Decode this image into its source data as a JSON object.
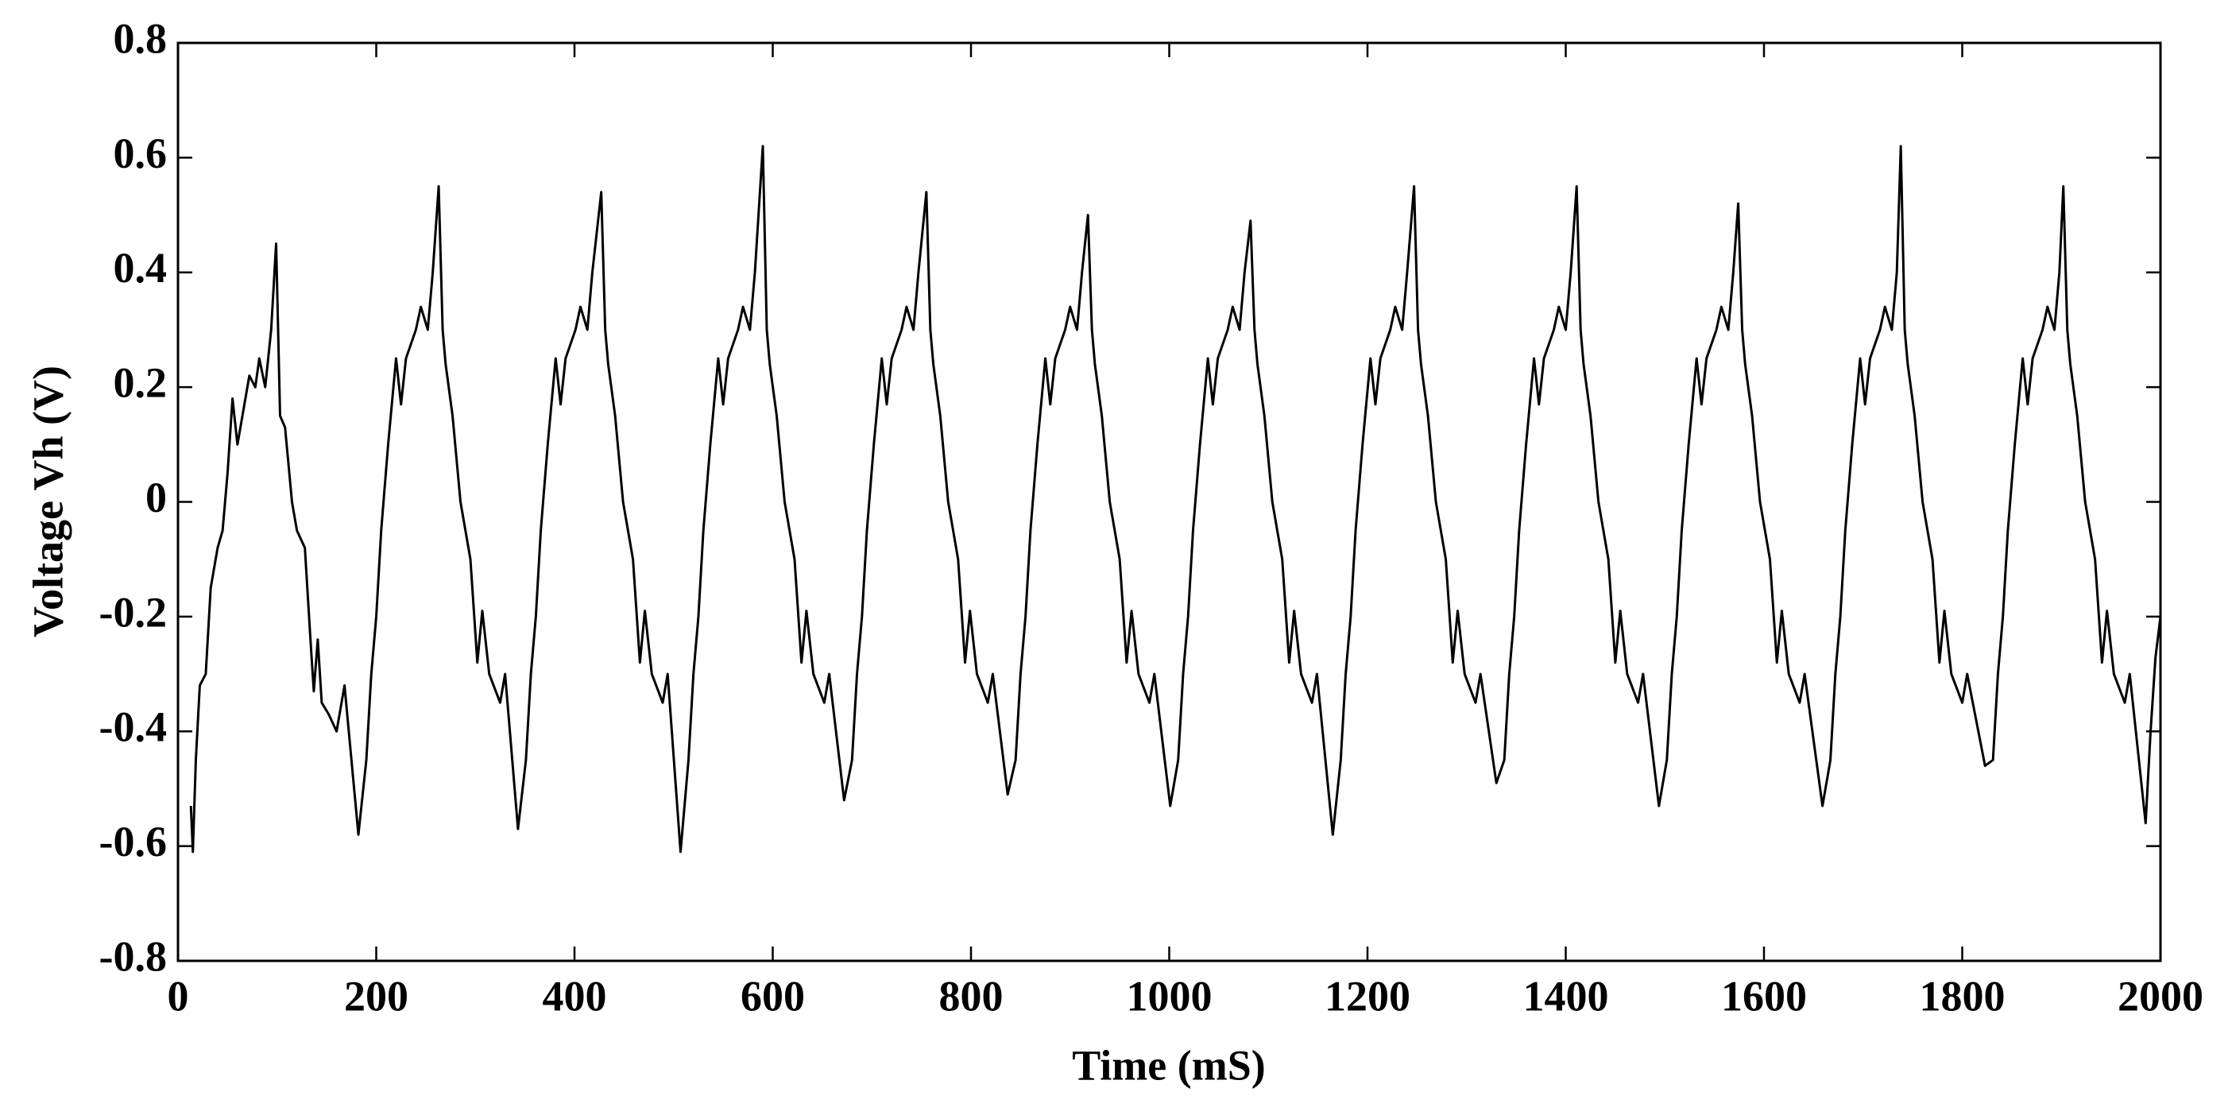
{
  "chart_data": {
    "type": "line",
    "xlabel": "Time (mS)",
    "ylabel": "Voltage Vh (V)",
    "color": "#000000",
    "xlim": [
      0,
      2000
    ],
    "xticks": [
      0,
      200,
      400,
      600,
      800,
      1000,
      1200,
      1400,
      1600,
      1800,
      2000
    ],
    "ylim": [
      -0.8,
      0.8
    ],
    "yticks": [
      -0.8,
      -0.6,
      -0.4,
      -0.2,
      0,
      0.2,
      0.4,
      0.6,
      0.8
    ],
    "grid": false,
    "x": [
      13,
      15,
      18,
      22,
      28,
      33,
      40,
      45,
      50,
      55,
      60,
      65,
      72,
      78,
      82,
      88,
      94,
      99,
      103,
      108,
      115,
      120,
      128,
      134,
      137,
      141,
      145,
      152,
      160,
      168,
      175,
      182,
      190,
      195,
      200,
      205,
      212,
      220,
      225,
      230,
      240,
      245,
      252,
      257,
      263,
      267,
      270,
      277,
      285,
      295,
      302,
      307,
      314,
      325,
      330,
      343,
      351,
      356,
      361,
      366,
      373,
      381,
      386,
      391,
      401,
      406,
      413,
      418,
      427,
      431,
      434,
      441,
      449,
      459,
      466,
      471,
      478,
      489,
      494,
      507,
      515,
      520,
      525,
      530,
      537,
      545,
      550,
      555,
      565,
      570,
      577,
      582,
      590,
      594,
      597,
      604,
      612,
      622,
      629,
      634,
      641,
      652,
      657,
      672,
      680,
      685,
      690,
      695,
      702,
      710,
      715,
      720,
      730,
      735,
      742,
      747,
      755,
      759,
      762,
      769,
      777,
      787,
      794,
      799,
      806,
      817,
      822,
      837,
      845,
      850,
      855,
      860,
      867,
      875,
      880,
      885,
      895,
      900,
      907,
      912,
      918,
      922,
      925,
      932,
      940,
      950,
      957,
      962,
      969,
      980,
      985,
      1001,
      1009,
      1014,
      1019,
      1024,
      1031,
      1039,
      1044,
      1049,
      1059,
      1064,
      1071,
      1076,
      1082,
      1086,
      1089,
      1096,
      1104,
      1114,
      1121,
      1126,
      1133,
      1144,
      1149,
      1165,
      1173,
      1178,
      1183,
      1188,
      1195,
      1203,
      1208,
      1213,
      1223,
      1228,
      1235,
      1240,
      1247,
      1251,
      1254,
      1261,
      1269,
      1279,
      1286,
      1291,
      1298,
      1309,
      1314,
      1330,
      1338,
      1343,
      1348,
      1353,
      1360,
      1368,
      1373,
      1378,
      1388,
      1393,
      1400,
      1405,
      1411,
      1415,
      1418,
      1425,
      1433,
      1443,
      1450,
      1455,
      1462,
      1473,
      1478,
      1494,
      1502,
      1507,
      1512,
      1517,
      1524,
      1532,
      1537,
      1542,
      1552,
      1557,
      1564,
      1569,
      1574,
      1578,
      1581,
      1588,
      1596,
      1606,
      1613,
      1618,
      1625,
      1636,
      1641,
      1659,
      1667,
      1672,
      1677,
      1682,
      1689,
      1697,
      1702,
      1707,
      1717,
      1722,
      1729,
      1734,
      1738,
      1742,
      1745,
      1752,
      1760,
      1770,
      1777,
      1782,
      1789,
      1800,
      1805,
      1823,
      1831,
      1836,
      1841,
      1846,
      1853,
      1861,
      1866,
      1871,
      1881,
      1886,
      1893,
      1898,
      1902,
      1906,
      1909,
      1916,
      1924,
      1934,
      1941,
      1946,
      1953,
      1964,
      1969,
      1985,
      1990,
      1995,
      2000
    ],
    "values": [
      -0.53,
      -0.61,
      -0.45,
      -0.32,
      -0.3,
      -0.15,
      -0.08,
      -0.05,
      0.05,
      0.18,
      0.1,
      0.15,
      0.22,
      0.2,
      0.25,
      0.2,
      0.3,
      0.45,
      0.15,
      0.13,
      0,
      -0.05,
      -0.08,
      -0.25,
      -0.33,
      -0.24,
      -0.35,
      -0.37,
      -0.4,
      -0.32,
      -0.45,
      -0.58,
      -0.45,
      -0.3,
      -0.2,
      -0.05,
      0.1,
      0.25,
      0.17,
      0.25,
      0.3,
      0.34,
      0.3,
      0.4,
      0.55,
      0.3,
      0.24,
      0.15,
      0,
      -0.1,
      -0.28,
      -0.19,
      -0.3,
      -0.35,
      -0.3,
      -0.57,
      -0.45,
      -0.3,
      -0.2,
      -0.05,
      0.1,
      0.25,
      0.17,
      0.25,
      0.3,
      0.34,
      0.3,
      0.4,
      0.54,
      0.3,
      0.24,
      0.15,
      0,
      -0.1,
      -0.28,
      -0.19,
      -0.3,
      -0.35,
      -0.3,
      -0.61,
      -0.45,
      -0.3,
      -0.2,
      -0.05,
      0.1,
      0.25,
      0.17,
      0.25,
      0.3,
      0.34,
      0.3,
      0.4,
      0.62,
      0.3,
      0.24,
      0.15,
      0,
      -0.1,
      -0.28,
      -0.19,
      -0.3,
      -0.35,
      -0.3,
      -0.52,
      -0.45,
      -0.3,
      -0.2,
      -0.05,
      0.1,
      0.25,
      0.17,
      0.25,
      0.3,
      0.34,
      0.3,
      0.4,
      0.54,
      0.3,
      0.24,
      0.15,
      0,
      -0.1,
      -0.28,
      -0.19,
      -0.3,
      -0.35,
      -0.3,
      -0.51,
      -0.45,
      -0.3,
      -0.2,
      -0.05,
      0.1,
      0.25,
      0.17,
      0.25,
      0.3,
      0.34,
      0.3,
      0.4,
      0.5,
      0.3,
      0.24,
      0.15,
      0,
      -0.1,
      -0.28,
      -0.19,
      -0.3,
      -0.35,
      -0.3,
      -0.53,
      -0.45,
      -0.3,
      -0.2,
      -0.05,
      0.1,
      0.25,
      0.17,
      0.25,
      0.3,
      0.34,
      0.3,
      0.4,
      0.49,
      0.3,
      0.24,
      0.15,
      0,
      -0.1,
      -0.28,
      -0.19,
      -0.3,
      -0.35,
      -0.3,
      -0.58,
      -0.45,
      -0.3,
      -0.2,
      -0.05,
      0.1,
      0.25,
      0.17,
      0.25,
      0.3,
      0.34,
      0.3,
      0.4,
      0.55,
      0.3,
      0.24,
      0.15,
      0,
      -0.1,
      -0.28,
      -0.19,
      -0.3,
      -0.35,
      -0.3,
      -0.49,
      -0.45,
      -0.3,
      -0.2,
      -0.05,
      0.1,
      0.25,
      0.17,
      0.25,
      0.3,
      0.34,
      0.3,
      0.4,
      0.55,
      0.3,
      0.24,
      0.15,
      0,
      -0.1,
      -0.28,
      -0.19,
      -0.3,
      -0.35,
      -0.3,
      -0.53,
      -0.45,
      -0.3,
      -0.2,
      -0.05,
      0.1,
      0.25,
      0.17,
      0.25,
      0.3,
      0.34,
      0.3,
      0.4,
      0.52,
      0.3,
      0.24,
      0.15,
      0,
      -0.1,
      -0.28,
      -0.19,
      -0.3,
      -0.35,
      -0.3,
      -0.53,
      -0.45,
      -0.3,
      -0.2,
      -0.05,
      0.1,
      0.25,
      0.17,
      0.25,
      0.3,
      0.34,
      0.3,
      0.4,
      0.62,
      0.3,
      0.24,
      0.15,
      0,
      -0.1,
      -0.28,
      -0.19,
      -0.3,
      -0.35,
      -0.3,
      -0.46,
      -0.45,
      -0.3,
      -0.2,
      -0.05,
      0.1,
      0.25,
      0.17,
      0.25,
      0.3,
      0.34,
      0.3,
      0.4,
      0.55,
      0.3,
      0.24,
      0.15,
      0,
      -0.1,
      -0.28,
      -0.19,
      -0.3,
      -0.35,
      -0.3,
      -0.56,
      -0.4,
      -0.27,
      -0.2
    ]
  }
}
